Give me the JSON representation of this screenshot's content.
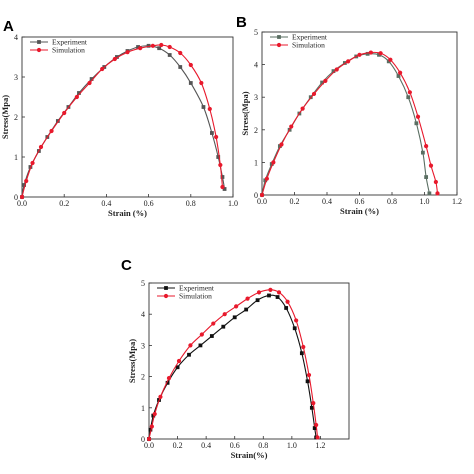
{
  "chart_data": [
    {
      "type": "line",
      "panel_label": "A",
      "xlabel": "Strain (%)",
      "ylabel": "Stress(Mpa)",
      "xlim": [
        0.0,
        1.0
      ],
      "ylim": [
        0,
        4
      ],
      "xticks": [
        0.0,
        0.2,
        0.4,
        0.6,
        0.8,
        1.0
      ],
      "xtick_labels": [
        "0.0",
        "0.2",
        "0.4",
        "0.6",
        "0.8",
        "1.0"
      ],
      "yticks": [
        0,
        1,
        2,
        3,
        4
      ],
      "ytick_labels": [
        "0",
        "1",
        "2",
        "3",
        "4"
      ],
      "legend_position": "top-left",
      "series": [
        {
          "name": "Experiment",
          "color": "#555555",
          "marker": "square",
          "x": [
            0.0,
            0.01,
            0.04,
            0.08,
            0.12,
            0.17,
            0.22,
            0.27,
            0.33,
            0.39,
            0.45,
            0.5,
            0.55,
            0.6,
            0.65,
            0.7,
            0.75,
            0.8,
            0.86,
            0.9,
            0.93,
            0.95,
            0.96
          ],
          "y": [
            0.0,
            0.3,
            0.75,
            1.15,
            1.5,
            1.9,
            2.25,
            2.6,
            2.95,
            3.25,
            3.5,
            3.65,
            3.75,
            3.78,
            3.72,
            3.55,
            3.25,
            2.85,
            2.25,
            1.6,
            1.0,
            0.5,
            0.2
          ]
        },
        {
          "name": "Simulation",
          "color": "#e8192c",
          "marker": "circle",
          "x": [
            0.0,
            0.02,
            0.05,
            0.09,
            0.14,
            0.2,
            0.26,
            0.32,
            0.38,
            0.44,
            0.5,
            0.56,
            0.62,
            0.66,
            0.7,
            0.75,
            0.8,
            0.85,
            0.89,
            0.92,
            0.94,
            0.95
          ],
          "y": [
            0.0,
            0.4,
            0.85,
            1.25,
            1.65,
            2.1,
            2.5,
            2.85,
            3.2,
            3.45,
            3.62,
            3.72,
            3.78,
            3.8,
            3.75,
            3.6,
            3.3,
            2.85,
            2.2,
            1.5,
            0.8,
            0.25
          ]
        }
      ]
    },
    {
      "type": "line",
      "panel_label": "B",
      "xlabel": "Strain (%)",
      "ylabel": "Stress(Mpa)",
      "xlim": [
        0.0,
        1.2
      ],
      "ylim": [
        0,
        5
      ],
      "xticks": [
        0.0,
        0.2,
        0.4,
        0.6,
        0.8,
        1.0,
        1.2
      ],
      "xtick_labels": [
        "0.0",
        "0.2",
        "0.4",
        "0.6",
        "0.8",
        "1.0",
        "1.2"
      ],
      "yticks": [
        0,
        1,
        2,
        3,
        4,
        5
      ],
      "ytick_labels": [
        "0",
        "1",
        "2",
        "3",
        "4",
        "5"
      ],
      "legend_position": "top-left",
      "series": [
        {
          "name": "Experiment",
          "color": "#5a6e62",
          "marker": "square",
          "x": [
            0.0,
            0.02,
            0.06,
            0.11,
            0.17,
            0.23,
            0.3,
            0.37,
            0.44,
            0.51,
            0.58,
            0.65,
            0.72,
            0.78,
            0.84,
            0.9,
            0.95,
            0.99,
            1.01,
            1.03
          ],
          "y": [
            0.0,
            0.45,
            0.95,
            1.5,
            2.0,
            2.5,
            3.0,
            3.45,
            3.8,
            4.05,
            4.25,
            4.33,
            4.3,
            4.1,
            3.65,
            3.0,
            2.2,
            1.3,
            0.55,
            0.05
          ]
        },
        {
          "name": "Simulation",
          "color": "#e8192c",
          "marker": "circle",
          "x": [
            0.0,
            0.03,
            0.07,
            0.12,
            0.18,
            0.25,
            0.32,
            0.39,
            0.46,
            0.53,
            0.6,
            0.67,
            0.73,
            0.79,
            0.85,
            0.91,
            0.96,
            1.01,
            1.04,
            1.07,
            1.08
          ],
          "y": [
            0.0,
            0.5,
            1.0,
            1.55,
            2.1,
            2.65,
            3.1,
            3.5,
            3.85,
            4.1,
            4.3,
            4.37,
            4.35,
            4.15,
            3.75,
            3.15,
            2.4,
            1.5,
            0.9,
            0.4,
            0.05
          ]
        }
      ]
    },
    {
      "type": "line",
      "panel_label": "C",
      "xlabel": "Strain(%)",
      "ylabel": "Stress(Mpa)",
      "xlim": [
        0.0,
        1.4
      ],
      "ylim": [
        0,
        5
      ],
      "xticks": [
        0.0,
        0.2,
        0.4,
        0.6,
        0.8,
        1.0,
        1.2
      ],
      "xtick_labels": [
        "0.0",
        "0.2",
        "0.4",
        "0.6",
        "0.8",
        "1.0",
        "1.2"
      ],
      "yticks": [
        0,
        1,
        2,
        3,
        4,
        5
      ],
      "ytick_labels": [
        "0",
        "1",
        "2",
        "3",
        "4",
        "5"
      ],
      "legend_position": "top-left",
      "series": [
        {
          "name": "Experiment",
          "color": "#111111",
          "marker": "square",
          "x": [
            0.0,
            0.01,
            0.03,
            0.07,
            0.13,
            0.2,
            0.28,
            0.36,
            0.44,
            0.52,
            0.6,
            0.68,
            0.76,
            0.84,
            0.9,
            0.96,
            1.02,
            1.07,
            1.11,
            1.14,
            1.16,
            1.17
          ],
          "y": [
            0.0,
            0.3,
            0.75,
            1.25,
            1.8,
            2.3,
            2.7,
            3.0,
            3.3,
            3.6,
            3.9,
            4.15,
            4.45,
            4.6,
            4.55,
            4.2,
            3.55,
            2.75,
            1.85,
            1.0,
            0.35,
            0.05
          ]
        },
        {
          "name": "Simulation",
          "color": "#e8192c",
          "marker": "circle",
          "x": [
            0.0,
            0.02,
            0.04,
            0.08,
            0.14,
            0.21,
            0.29,
            0.37,
            0.45,
            0.53,
            0.61,
            0.69,
            0.77,
            0.85,
            0.91,
            0.97,
            1.03,
            1.08,
            1.12,
            1.15,
            1.17,
            1.18
          ],
          "y": [
            0.0,
            0.4,
            0.8,
            1.35,
            1.95,
            2.5,
            3.0,
            3.35,
            3.7,
            4.0,
            4.25,
            4.5,
            4.7,
            4.78,
            4.7,
            4.4,
            3.8,
            2.95,
            2.05,
            1.15,
            0.45,
            0.05
          ]
        }
      ]
    }
  ]
}
